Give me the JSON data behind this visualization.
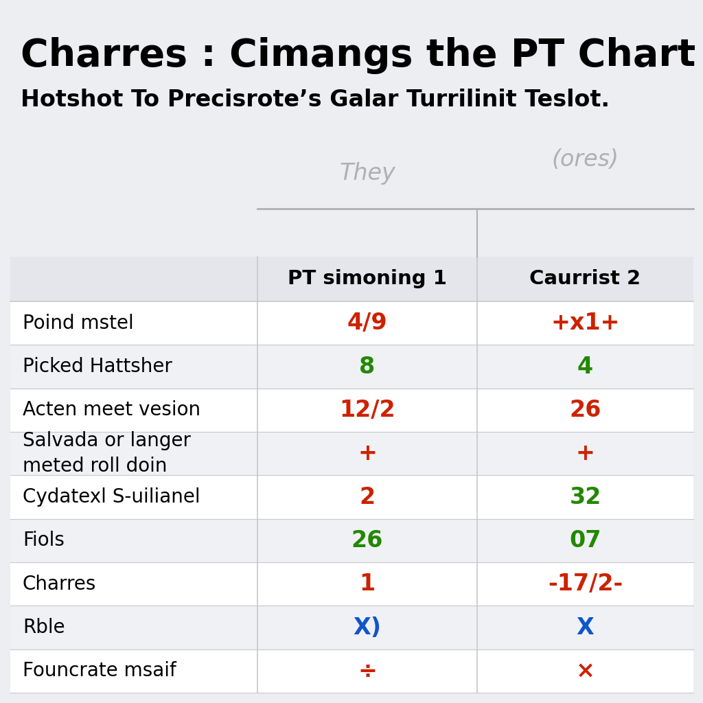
{
  "title": "Charres : Cimangs the PT Chart",
  "subtitle": "Hotshot To Precisrote’s Galar Turrilinit Teslot.",
  "col1_header": "PT simoning 1",
  "col2_header": "Caurrist 2",
  "handwritten_col1": "They",
  "handwritten_col2": "(ores)",
  "rows": [
    {
      "label": "Poind mstel",
      "val1": "4/9",
      "val1_color": "#cc2200",
      "val2": "+x1+",
      "val2_color": "#cc2200"
    },
    {
      "label": "Picked Hattsher",
      "val1": "8",
      "val1_color": "#228800",
      "val2": "4",
      "val2_color": "#228800"
    },
    {
      "label": "Acten meet vesion",
      "val1": "12/2",
      "val1_color": "#cc2200",
      "val2": "26",
      "val2_color": "#cc2200"
    },
    {
      "label": "Salvada or langer\nmeted roll doin",
      "val1": "+",
      "val1_color": "#cc2200",
      "val2": "+",
      "val2_color": "#cc2200"
    },
    {
      "label": "Cydatexl S-uilianel",
      "val1": "2",
      "val1_color": "#cc2200",
      "val2": "32",
      "val2_color": "#228800"
    },
    {
      "label": "Fiols",
      "val1": "26",
      "val1_color": "#228800",
      "val2": "07",
      "val2_color": "#228800"
    },
    {
      "label": "Charres",
      "val1": "1",
      "val1_color": "#cc2200",
      "val2": "-17/2-",
      "val2_color": "#cc2200"
    },
    {
      "label": "Rble",
      "val1": "X)",
      "val1_color": "#1155cc",
      "val2": "X",
      "val2_color": "#1155cc"
    },
    {
      "label": "Founcrate msaif",
      "val1": "÷",
      "val1_color": "#cc2200",
      "val2": "×",
      "val2_color": "#cc2200"
    }
  ],
  "bg_color": "#edeef2",
  "row_colors": [
    "#ffffff",
    "#f0f1f5"
  ],
  "header_bg": "#e4e6ec",
  "divider_color": "#c8c8c8",
  "title_fontsize": 40,
  "subtitle_fontsize": 24,
  "header_fontsize": 21,
  "row_fontsize": 22,
  "label_fontsize": 20
}
